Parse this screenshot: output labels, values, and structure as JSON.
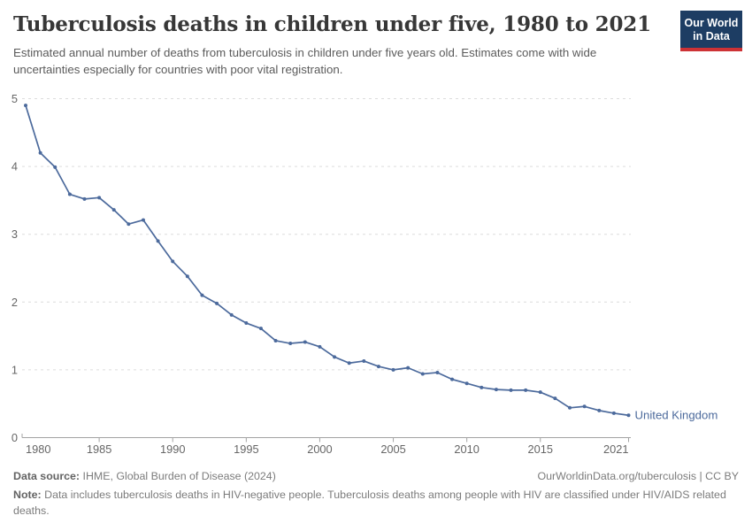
{
  "header": {
    "title": "Tuberculosis deaths in children under five, 1980 to 2021",
    "subtitle": "Estimated annual number of deaths from tuberculosis in children under five years old. Estimates come with wide uncertainties especially for countries with poor vital registration.",
    "logo": {
      "line1": "Our World",
      "line2": "in Data",
      "bg_color": "#1d3d63",
      "stripe_color": "#cd3235"
    }
  },
  "chart_data": {
    "type": "line",
    "title": "Tuberculosis deaths in children under five, 1980 to 2021",
    "xlabel": "",
    "ylabel": "",
    "xlim": [
      1980,
      2021
    ],
    "ylim": [
      0,
      5
    ],
    "x_ticks": [
      1980,
      1985,
      1990,
      1995,
      2000,
      2005,
      2010,
      2015,
      2021
    ],
    "y_ticks": [
      0,
      1,
      2,
      3,
      4,
      5
    ],
    "grid": "horizontal-dashed",
    "legend_position": "end-of-line",
    "x": [
      1980,
      1981,
      1982,
      1983,
      1984,
      1985,
      1986,
      1987,
      1988,
      1989,
      1990,
      1991,
      1992,
      1993,
      1994,
      1995,
      1996,
      1997,
      1998,
      1999,
      2000,
      2001,
      2002,
      2003,
      2004,
      2005,
      2006,
      2007,
      2008,
      2009,
      2010,
      2011,
      2012,
      2013,
      2014,
      2015,
      2016,
      2017,
      2018,
      2019,
      2020,
      2021
    ],
    "series": [
      {
        "name": "United Kingdom",
        "color": "#4C6A9C",
        "values": [
          4.9,
          4.2,
          3.99,
          3.59,
          3.52,
          3.54,
          3.36,
          3.15,
          3.21,
          2.9,
          2.6,
          2.38,
          2.1,
          1.98,
          1.81,
          1.69,
          1.61,
          1.43,
          1.39,
          1.41,
          1.34,
          1.19,
          1.1,
          1.13,
          1.05,
          1.0,
          1.03,
          0.94,
          0.96,
          0.86,
          0.8,
          0.74,
          0.71,
          0.7,
          0.7,
          0.67,
          0.58,
          0.44,
          0.46,
          0.4,
          0.36,
          0.33
        ]
      }
    ]
  },
  "footer": {
    "source_label": "Data source:",
    "source_text": " IHME, Global Burden of Disease (2024)",
    "license_text": "OurWorldinData.org/tuberculosis | CC BY",
    "note_label": "Note:",
    "note_text": " Data includes tuberculosis deaths in HIV-negative people. Tuberculosis deaths among people with HIV are classified under HIV/AIDS related deaths."
  }
}
